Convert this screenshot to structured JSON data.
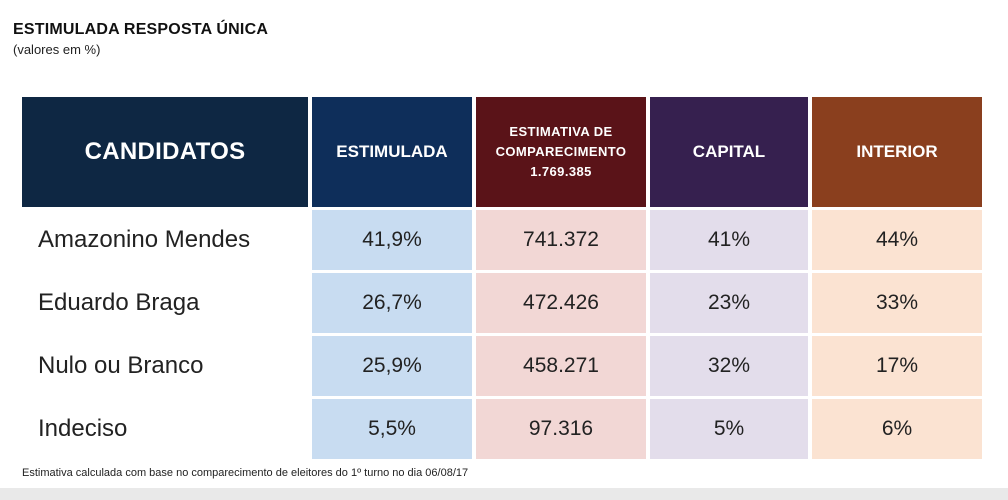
{
  "title": "ESTIMULADA RESPOSTA ÚNICA",
  "subtitle": "(valores em %)",
  "footnote": "Estimativa calculada com base no comparecimento de eleitores do 1º turno no dia 06/08/17",
  "colors": {
    "header_candidatos": "#0e2743",
    "header_estimulada": "#0e2e5a",
    "header_comparecimento": "#5a1318",
    "header_capital": "#36204f",
    "header_interior": "#8a3f1e",
    "cell_estimulada": "#c8dcf1",
    "cell_comparecimento": "#f2d7d5",
    "cell_capital": "#e3ddeb",
    "cell_interior": "#fbe3d2"
  },
  "chart_data": {
    "type": "table",
    "title": "ESTIMULADA RESPOSTA ÚNICA",
    "subtitle": "(valores em %)",
    "headers": {
      "candidatos": "CANDIDATOS",
      "estimulada": "ESTIMULADA",
      "comparecimento_line1": "ESTIMATIVA DE",
      "comparecimento_line2": "COMPARECIMENTO",
      "comparecimento_line3": "1.769.385",
      "capital": "CAPITAL",
      "interior": "INTERIOR"
    },
    "rows": [
      {
        "candidato": "Amazonino Mendes",
        "estimulada": "41,9%",
        "comparecimento": "741.372",
        "capital": "41%",
        "interior": "44%"
      },
      {
        "candidato": "Eduardo Braga",
        "estimulada": "26,7%",
        "comparecimento": "472.426",
        "capital": "23%",
        "interior": "33%"
      },
      {
        "candidato": "Nulo ou Branco",
        "estimulada": "25,9%",
        "comparecimento": "458.271",
        "capital": "32%",
        "interior": "17%"
      },
      {
        "candidato": "Indeciso",
        "estimulada": "5,5%",
        "comparecimento": "97.316",
        "capital": "5%",
        "interior": "6%"
      }
    ]
  }
}
